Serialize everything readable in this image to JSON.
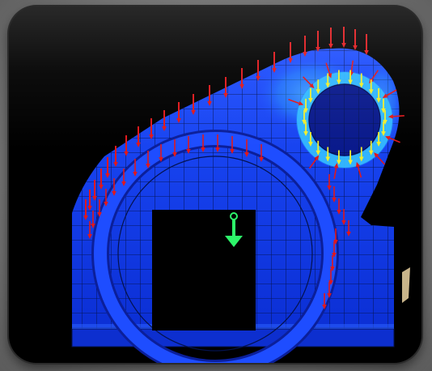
{
  "image": {
    "caption": "",
    "colors": {
      "background": "#000000",
      "mesh_base": "#0a2fd6",
      "mesh_light": "#2c62ff",
      "stress_hot": "#43d9ff",
      "force_arrow": "#e0181c",
      "bearing_arrow": "#f2ee2c",
      "gravity_arrow": "#2df56a",
      "frame": "#2b2b2b"
    },
    "icons": {
      "gravity": "down-arrow-icon",
      "force": "force-arrow-icon",
      "bearing_load": "bearing-load-arrow-icon"
    }
  }
}
